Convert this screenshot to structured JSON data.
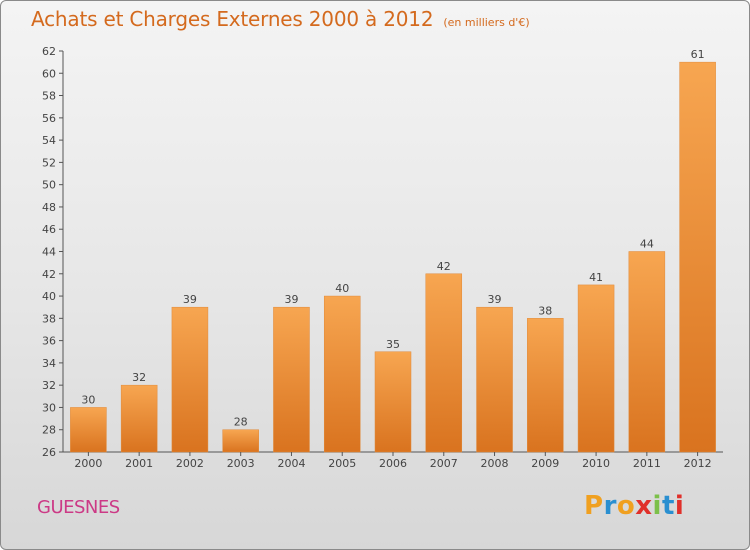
{
  "header": {
    "title": "Achats et Charges Externes 2000 à 2012",
    "subtitle": "(en milliers d'€)"
  },
  "footer": {
    "commune": "GUESNES",
    "logo": "Proxiti"
  },
  "colors": {
    "title": "#d46a1e",
    "commune": "#cc3a86",
    "bar_light": "#f7a651",
    "bar_dark": "#d9731f",
    "logo_letters": [
      "#f0a020",
      "#2a8fd0",
      "#f0a020",
      "#e0302a",
      "#7cc04a",
      "#2a8fd0",
      "#e0302a"
    ]
  },
  "chart_data": {
    "type": "bar",
    "title": "Achats et Charges Externes 2000 à 2012",
    "subtitle": "(en milliers d'€)",
    "categories": [
      "2000",
      "2001",
      "2002",
      "2003",
      "2004",
      "2005",
      "2006",
      "2007",
      "2008",
      "2009",
      "2010",
      "2011",
      "2012"
    ],
    "values": [
      30,
      32,
      39,
      28,
      39,
      40,
      35,
      42,
      39,
      38,
      41,
      44,
      61
    ],
    "ylim": [
      26,
      62
    ],
    "yticks": [
      26,
      28,
      30,
      32,
      34,
      36,
      38,
      40,
      42,
      44,
      46,
      48,
      50,
      52,
      54,
      56,
      58,
      60,
      62
    ],
    "xlabel": "",
    "ylabel": "",
    "grid": false,
    "data_labels": true
  }
}
